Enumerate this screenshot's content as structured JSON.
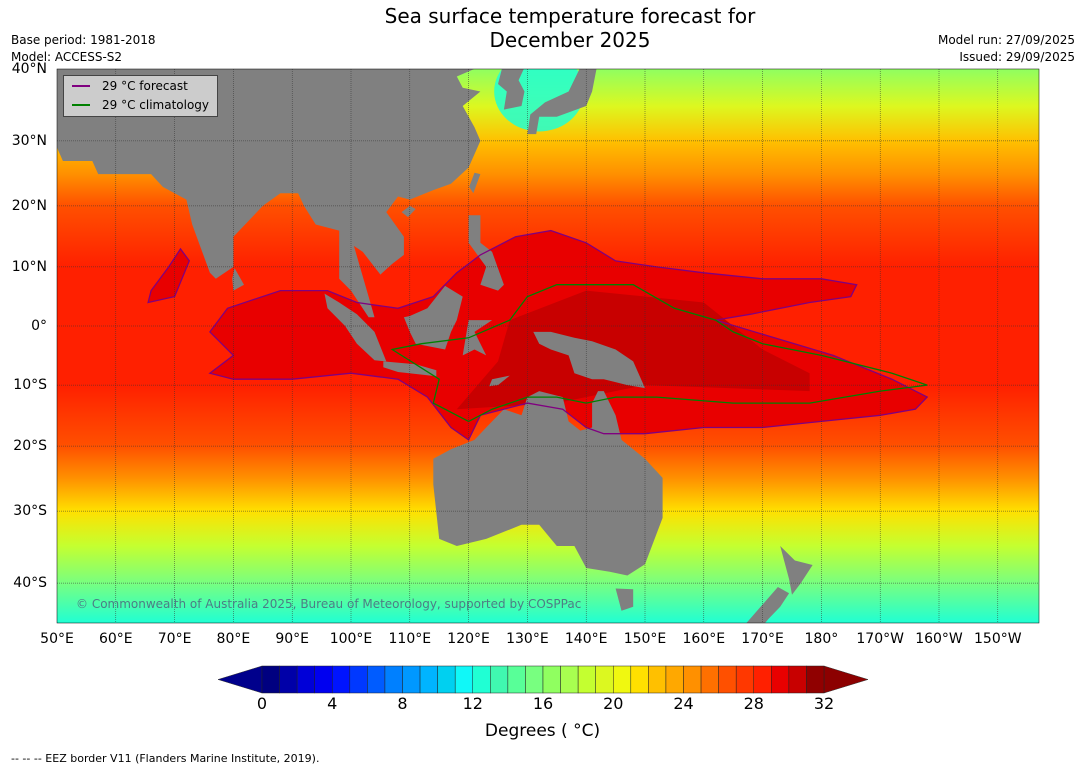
{
  "header": {
    "title_line1": "Sea surface temperature forecast for",
    "title_line2": "December 2025",
    "base_period": "Base period: 1981-2018",
    "model": "Model: ACCESS-S2",
    "model_run": "Model run: 27/09/2025",
    "issued": "Issued: 29/09/2025"
  },
  "map": {
    "lat_labels": [
      "40°N",
      "30°N",
      "20°N",
      "10°N",
      "0°",
      "10°S",
      "20°S",
      "30°S",
      "40°S"
    ],
    "lon_labels": [
      "50°E",
      "60°E",
      "70°E",
      "80°E",
      "90°E",
      "100°E",
      "110°E",
      "120°E",
      "130°E",
      "140°E",
      "150°E",
      "160°E",
      "170°E",
      "180°",
      "170°W",
      "160°W",
      "150°W"
    ],
    "copyright": "© Commonwealth of Australia 2025, Bureau of Meteorology, supported by COSPPac",
    "land_color": "#808080",
    "legend": {
      "forecast": "29 °C  forecast",
      "climatology": "29 °C  climatology",
      "forecast_color": "#800080",
      "climatology_color": "#008000"
    }
  },
  "colorbar": {
    "ticks": [
      "0",
      "4",
      "8",
      "12",
      "16",
      "20",
      "24",
      "28",
      "32"
    ],
    "label": "Degrees ( °C)",
    "min": 0,
    "max": 32,
    "step": 1,
    "under_color": "#00008c",
    "over_color": "#8c0000",
    "palette": [
      "#000080",
      "#0000a8",
      "#0000d8",
      "#0000f0",
      "#0014ff",
      "#0038ff",
      "#005cff",
      "#0080ff",
      "#0098ff",
      "#00b4ff",
      "#00d0f0",
      "#10f8f8",
      "#20ffd4",
      "#40f8b0",
      "#58ff98",
      "#78ff80",
      "#90ff60",
      "#a8ff50",
      "#c4ff30",
      "#dcf820",
      "#f0f810",
      "#ffe000",
      "#ffc000",
      "#ffa800",
      "#ff9000",
      "#ff7000",
      "#ff5000",
      "#ff3800",
      "#ff2000",
      "#e80000",
      "#c80000",
      "#900000"
    ]
  },
  "footnote": "--  --  -- EEZ border V11 (Flanders Marine Institute, 2019)."
}
